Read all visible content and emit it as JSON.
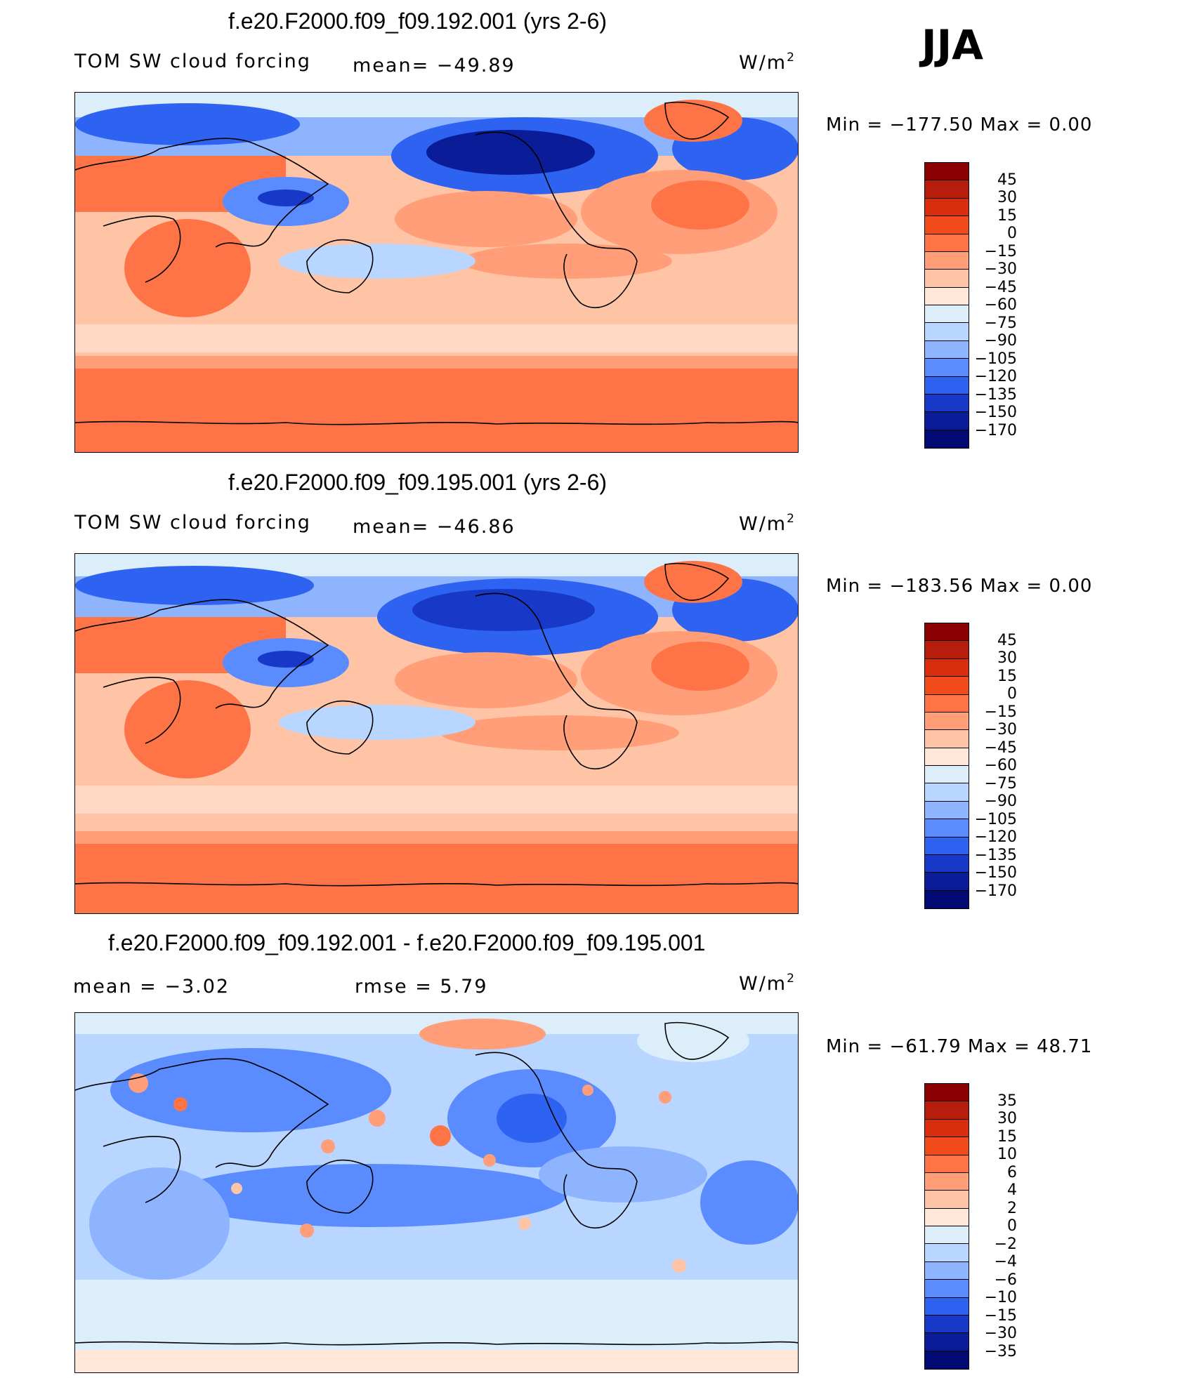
{
  "season": "JJA",
  "panels": [
    {
      "title": "f.e20.F2000.f09_f09.192.001 (yrs 2-6)",
      "left_label": "TOM SW cloud forcing",
      "mid_label": "mean= −49.89",
      "units_prefix": "W/m",
      "units_sup": "2",
      "minmax": "Min = −177.50 Max =    0.00",
      "colorbar_levels": [
        "45",
        "30",
        "15",
        "0",
        "−15",
        "−30",
        "−45",
        "−60",
        "−75",
        "−90",
        "−105",
        "−120",
        "−135",
        "−150",
        "−170"
      ],
      "colorbar_colors": [
        "#8b0000",
        "#b71c0c",
        "#d92d0e",
        "#f24c1c",
        "#ff7446",
        "#ff9e78",
        "#ffc4a6",
        "#ffe8d8",
        "#dceefa",
        "#b8d6ff",
        "#8eb4ff",
        "#5a8cff",
        "#2e62f0",
        "#1838c8",
        "#0a1c98",
        "#000a72"
      ]
    },
    {
      "title": "f.e20.F2000.f09_f09.195.001 (yrs 2-6)",
      "left_label": "TOM SW cloud forcing",
      "mid_label": "mean= −46.86",
      "units_prefix": "W/m",
      "units_sup": "2",
      "minmax": "Min = −183.56 Max =    0.00",
      "colorbar_levels": [
        "45",
        "30",
        "15",
        "0",
        "−15",
        "−30",
        "−45",
        "−60",
        "−75",
        "−90",
        "−105",
        "−120",
        "−135",
        "−150",
        "−170"
      ],
      "colorbar_colors": [
        "#8b0000",
        "#b71c0c",
        "#d92d0e",
        "#f24c1c",
        "#ff7446",
        "#ff9e78",
        "#ffc4a6",
        "#ffe8d8",
        "#dceefa",
        "#b8d6ff",
        "#8eb4ff",
        "#5a8cff",
        "#2e62f0",
        "#1838c8",
        "#0a1c98",
        "#000a72"
      ]
    },
    {
      "title": "f.e20.F2000.f09_f09.192.001 - f.e20.F2000.f09_f09.195.001",
      "left_label": "mean =   −3.02",
      "mid_label": "rmse =    5.79",
      "units_prefix": "W/m",
      "units_sup": "2",
      "minmax": "Min = −61.79 Max =  48.71",
      "colorbar_levels": [
        "35",
        "30",
        "15",
        "10",
        "6",
        "4",
        "2",
        "0",
        "−2",
        "−4",
        "−6",
        "−10",
        "−15",
        "−30",
        "−35"
      ],
      "colorbar_colors": [
        "#8b0000",
        "#b71c0c",
        "#d92d0e",
        "#f24c1c",
        "#ff7446",
        "#ff9e78",
        "#ffc4a6",
        "#ffe8d8",
        "#dceefa",
        "#b8d6ff",
        "#8eb4ff",
        "#5a8cff",
        "#2e62f0",
        "#1838c8",
        "#0a1c98",
        "#000a72"
      ]
    }
  ]
}
